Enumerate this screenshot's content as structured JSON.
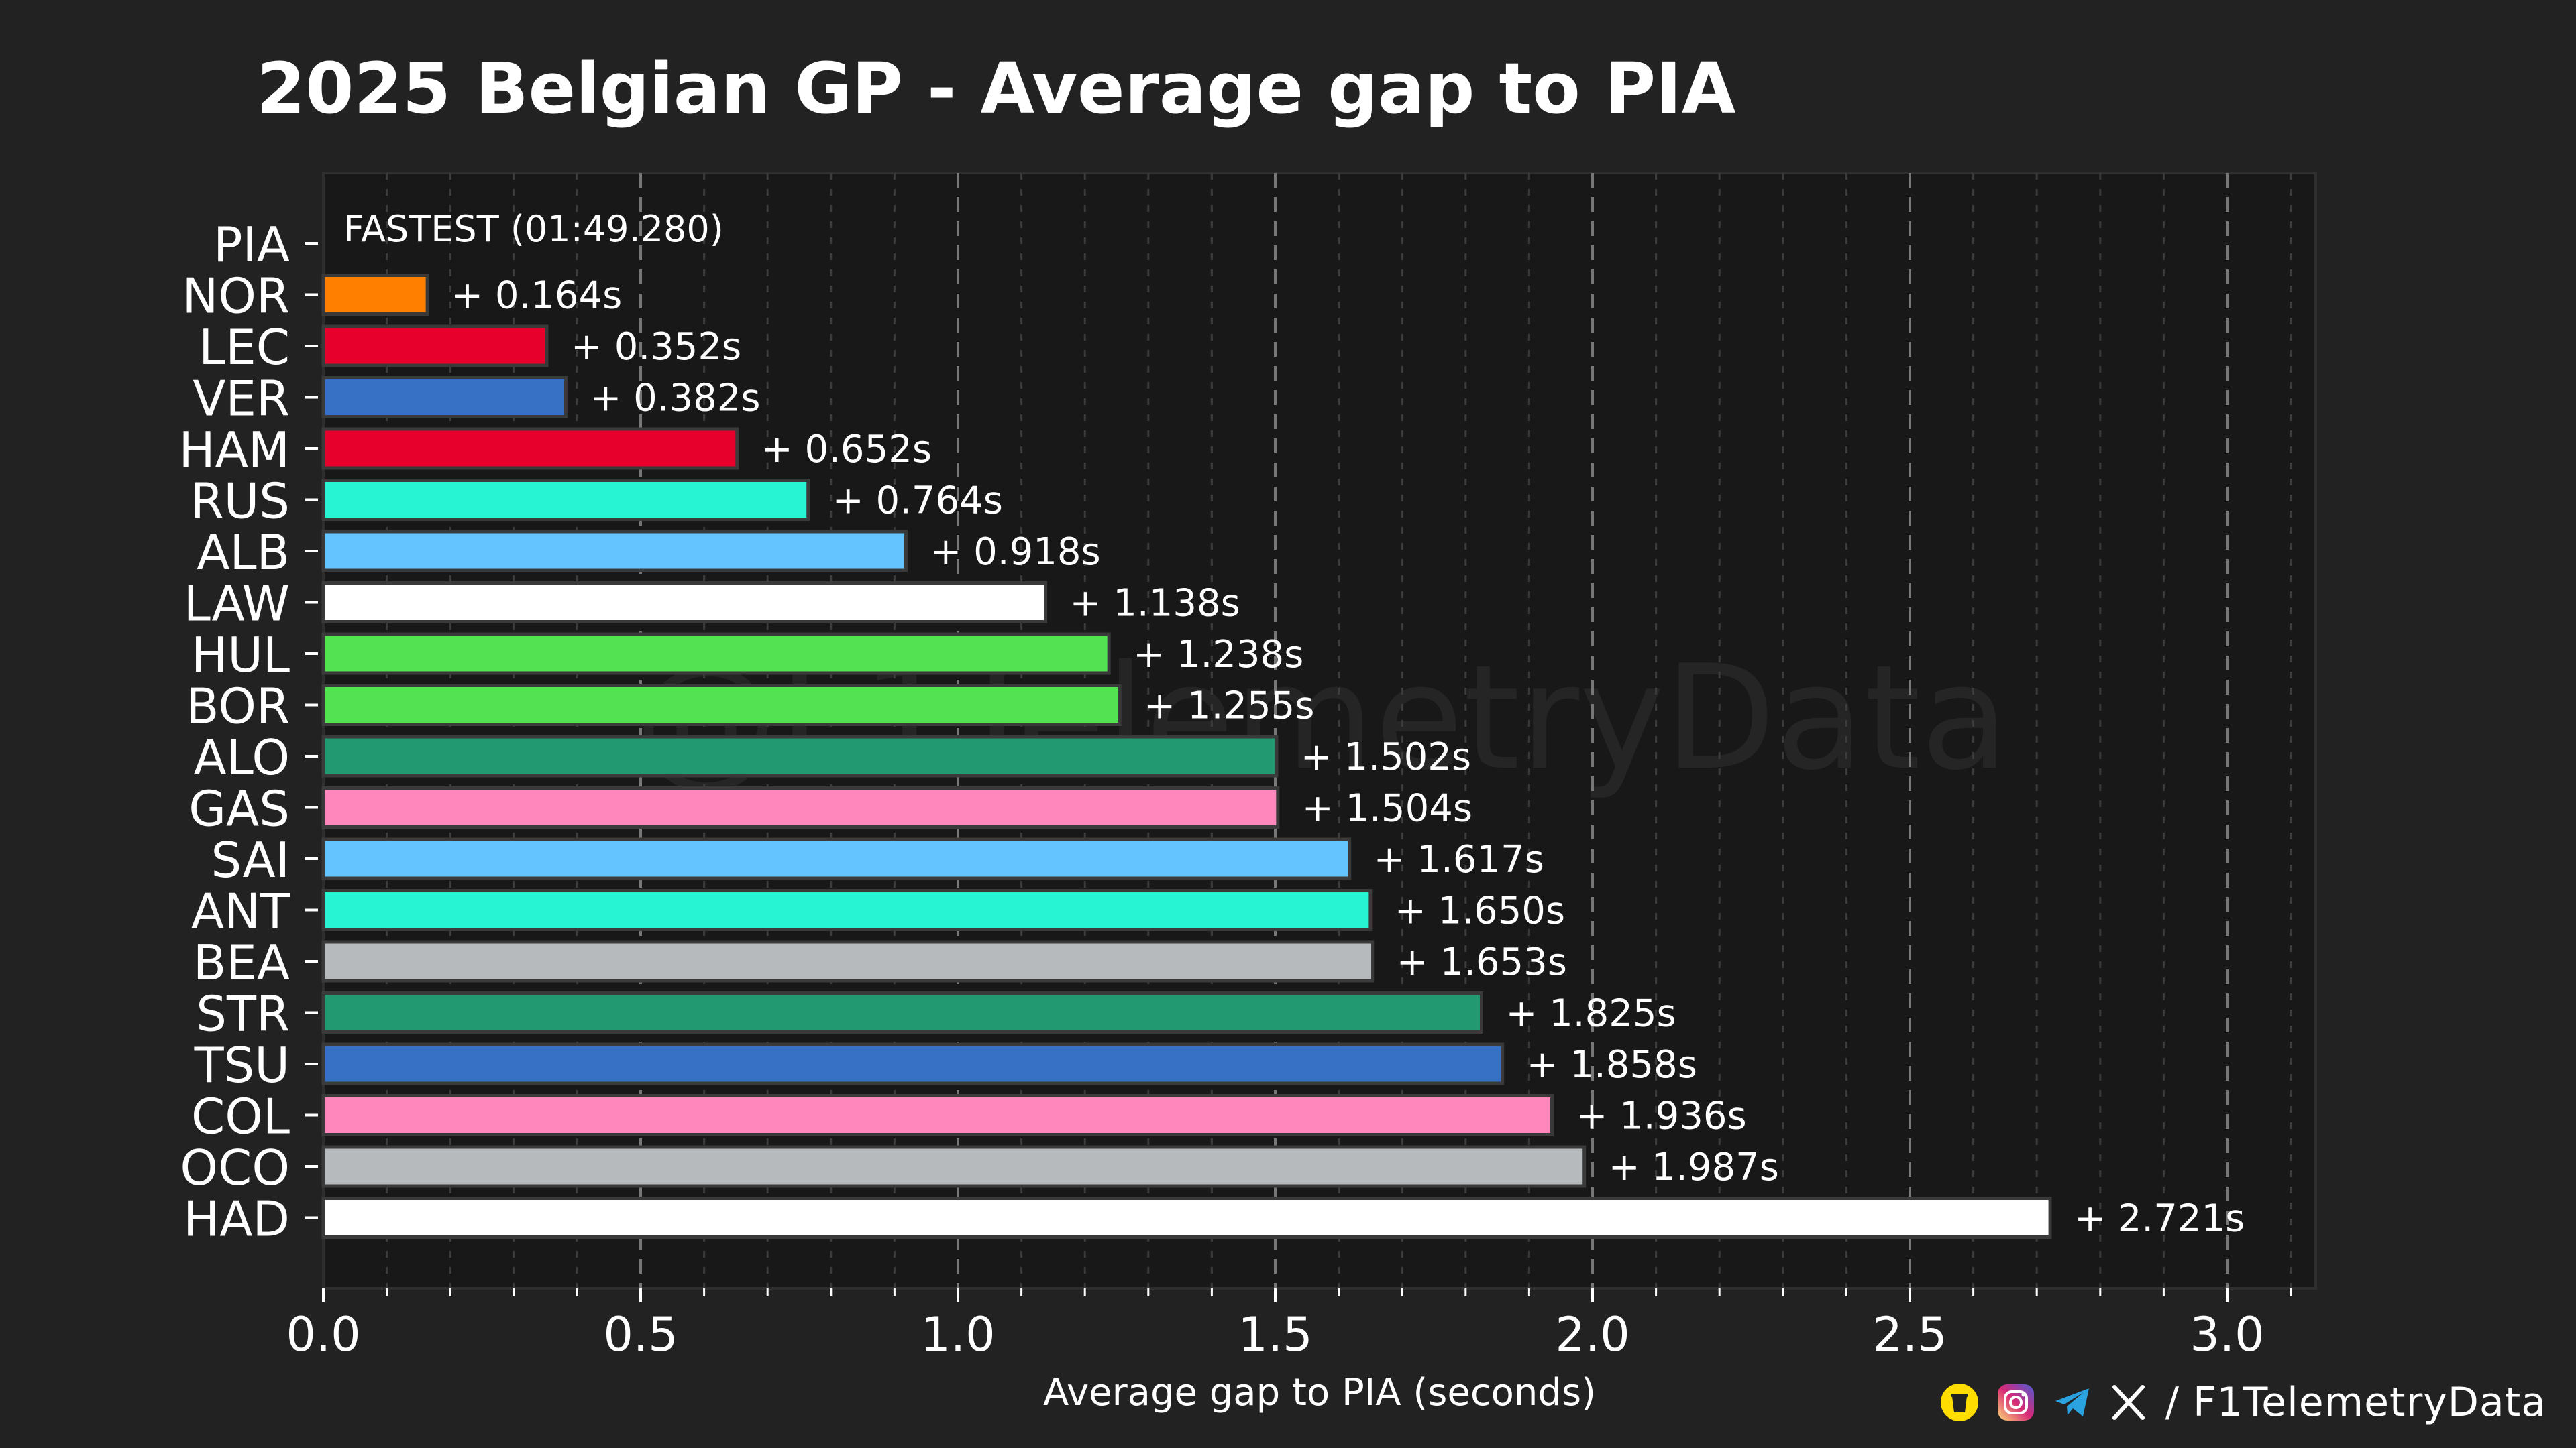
{
  "chart_data": {
    "type": "bar",
    "orientation": "horizontal",
    "title": "2025 Belgian GP - Average gap to PIA",
    "xlabel": "Average gap to PIA (seconds)",
    "ylabel": "",
    "xlim": [
      0.0,
      3.15
    ],
    "x_ticks": [
      "0.0",
      "0.5",
      "1.0",
      "1.5",
      "2.0",
      "2.5",
      "3.0"
    ],
    "x_tick_values": [
      0.0,
      0.5,
      1.0,
      1.5,
      2.0,
      2.5,
      3.0
    ],
    "grid": "vertical dashed",
    "watermark": "@F1TelemetryData",
    "fastest": {
      "driver": "PIA",
      "label": "FASTEST (01:49.280)"
    },
    "bars": [
      {
        "driver": "NOR",
        "value": 0.164,
        "label": "+ 0.164s",
        "color": "#ff8000"
      },
      {
        "driver": "LEC",
        "value": 0.352,
        "label": "+ 0.352s",
        "color": "#e8002d"
      },
      {
        "driver": "VER",
        "value": 0.382,
        "label": "+ 0.382s",
        "color": "#3671c6"
      },
      {
        "driver": "HAM",
        "value": 0.652,
        "label": "+ 0.652s",
        "color": "#e8002d"
      },
      {
        "driver": "RUS",
        "value": 0.764,
        "label": "+ 0.764s",
        "color": "#27f4d2"
      },
      {
        "driver": "ALB",
        "value": 0.918,
        "label": "+ 0.918s",
        "color": "#64c4ff"
      },
      {
        "driver": "LAW",
        "value": 1.138,
        "label": "+ 1.138s",
        "color": "#ffffff"
      },
      {
        "driver": "HUL",
        "value": 1.238,
        "label": "+ 1.238s",
        "color": "#52e252"
      },
      {
        "driver": "BOR",
        "value": 1.255,
        "label": "+ 1.255s",
        "color": "#52e252"
      },
      {
        "driver": "ALO",
        "value": 1.502,
        "label": "+ 1.502s",
        "color": "#229971"
      },
      {
        "driver": "GAS",
        "value": 1.504,
        "label": "+ 1.504s",
        "color": "#ff87bc"
      },
      {
        "driver": "SAI",
        "value": 1.617,
        "label": "+ 1.617s",
        "color": "#64c4ff"
      },
      {
        "driver": "ANT",
        "value": 1.65,
        "label": "+ 1.650s",
        "color": "#27f4d2"
      },
      {
        "driver": "BEA",
        "value": 1.653,
        "label": "+ 1.653s",
        "color": "#b6babd"
      },
      {
        "driver": "STR",
        "value": 1.825,
        "label": "+ 1.825s",
        "color": "#229971"
      },
      {
        "driver": "TSU",
        "value": 1.858,
        "label": "+ 1.858s",
        "color": "#3671c6"
      },
      {
        "driver": "COL",
        "value": 1.936,
        "label": "+ 1.936s",
        "color": "#ff87bc"
      },
      {
        "driver": "OCO",
        "value": 1.987,
        "label": "+ 1.987s",
        "color": "#b6babd"
      },
      {
        "driver": "HAD",
        "value": 2.721,
        "label": "+ 2.721s",
        "color": "#ffffff"
      }
    ]
  },
  "footer": {
    "handle": "/ F1TelemetryData",
    "icons": [
      "coffee-icon",
      "instagram-icon",
      "telegram-icon",
      "x-icon"
    ]
  },
  "colors": {
    "background": "#222222",
    "plot_background": "#181818",
    "text": "#ffffff",
    "grid": "#777777"
  }
}
